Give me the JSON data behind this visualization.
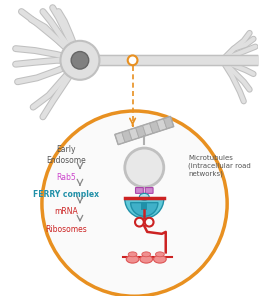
{
  "bg_color": "#ffffff",
  "neuron_fill": "#e0e0e0",
  "neuron_stroke": "#c0c0c0",
  "nucleus_fill": "#808080",
  "nucleus_stroke": "#666666",
  "circle_outline": "#e89020",
  "circle_fill": "#fefefe",
  "endosome_fill": "#e8e8e8",
  "endosome_stroke": "#c0c0c0",
  "mt_fill": "#c8c8c8",
  "mt_stroke": "#aaaaaa",
  "ferry_light": "#60c8d8",
  "ferry_dark": "#2090a8",
  "ferry_mid": "#40b0c8",
  "rab5_fill": "#cc88cc",
  "rab5_stroke": "#aa44aa",
  "mrna_color": "#cc2222",
  "ribo_fill": "#f09090",
  "ribo_stroke": "#dd5555",
  "label_dark": "#555555",
  "label_rab5": "#cc44cc",
  "label_ferry": "#2090a8",
  "label_mrna": "#cc2222",
  "label_ribo": "#cc2222",
  "arrow_color": "#888888",
  "connector_orange": "#e89020",
  "labels": {
    "early_endosome": "Early\nEndosome",
    "rab5": "Rab5",
    "ferry": "FERRY complex",
    "mrna": "mRNA",
    "ribosomes": "Ribosomes",
    "microtubules": "Microtubules\n(intracellular road\nnetworks)"
  }
}
